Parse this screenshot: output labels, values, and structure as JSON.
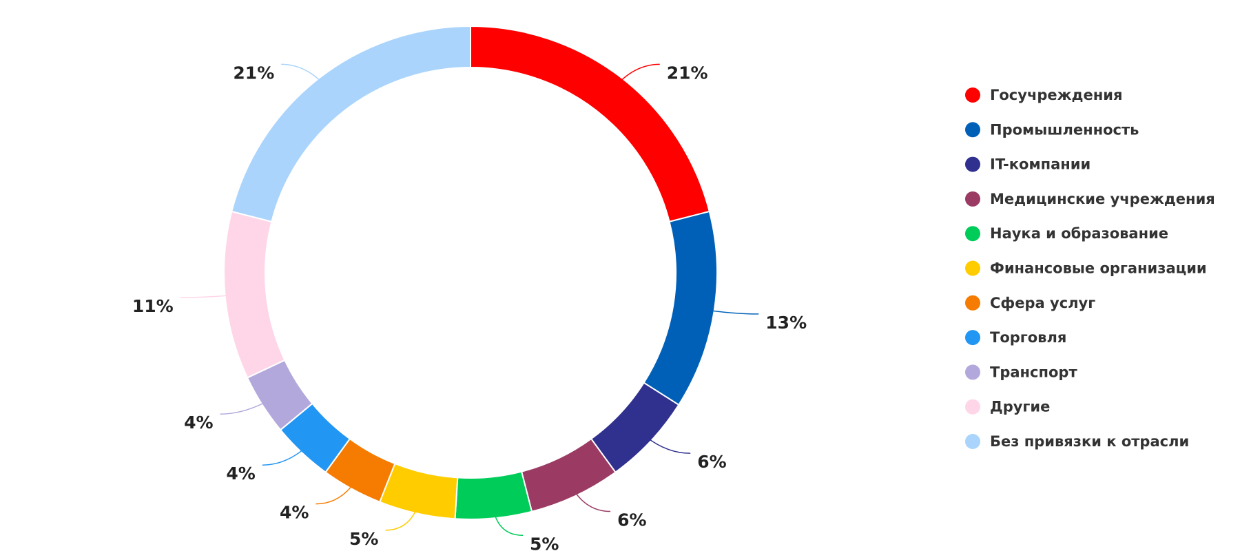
{
  "chart_data": {
    "type": "donut",
    "categories": [
      "Госучреждения",
      "Промышленность",
      "IT-компании",
      "Медицинские учреждения",
      "Наука и образование",
      "Финансовые организации",
      "Сфера услуг",
      "Торговля",
      "Транспорт",
      "Другие",
      "Без привязки к отрасли"
    ],
    "values": [
      21,
      13,
      6,
      6,
      5,
      5,
      4,
      4,
      4,
      11,
      21
    ],
    "value_labels": [
      "21%",
      "13%",
      "6%",
      "6%",
      "5%",
      "5%",
      "4%",
      "4%",
      "4%",
      "11%",
      "21%"
    ],
    "colors": [
      "#ff0000",
      "#0060b8",
      "#30308e",
      "#9b3b63",
      "#00cc5a",
      "#ffcc00",
      "#f57c00",
      "#2196f3",
      "#b3a8dc",
      "#ffd6e8",
      "#aad4fc"
    ],
    "legend": "right"
  }
}
